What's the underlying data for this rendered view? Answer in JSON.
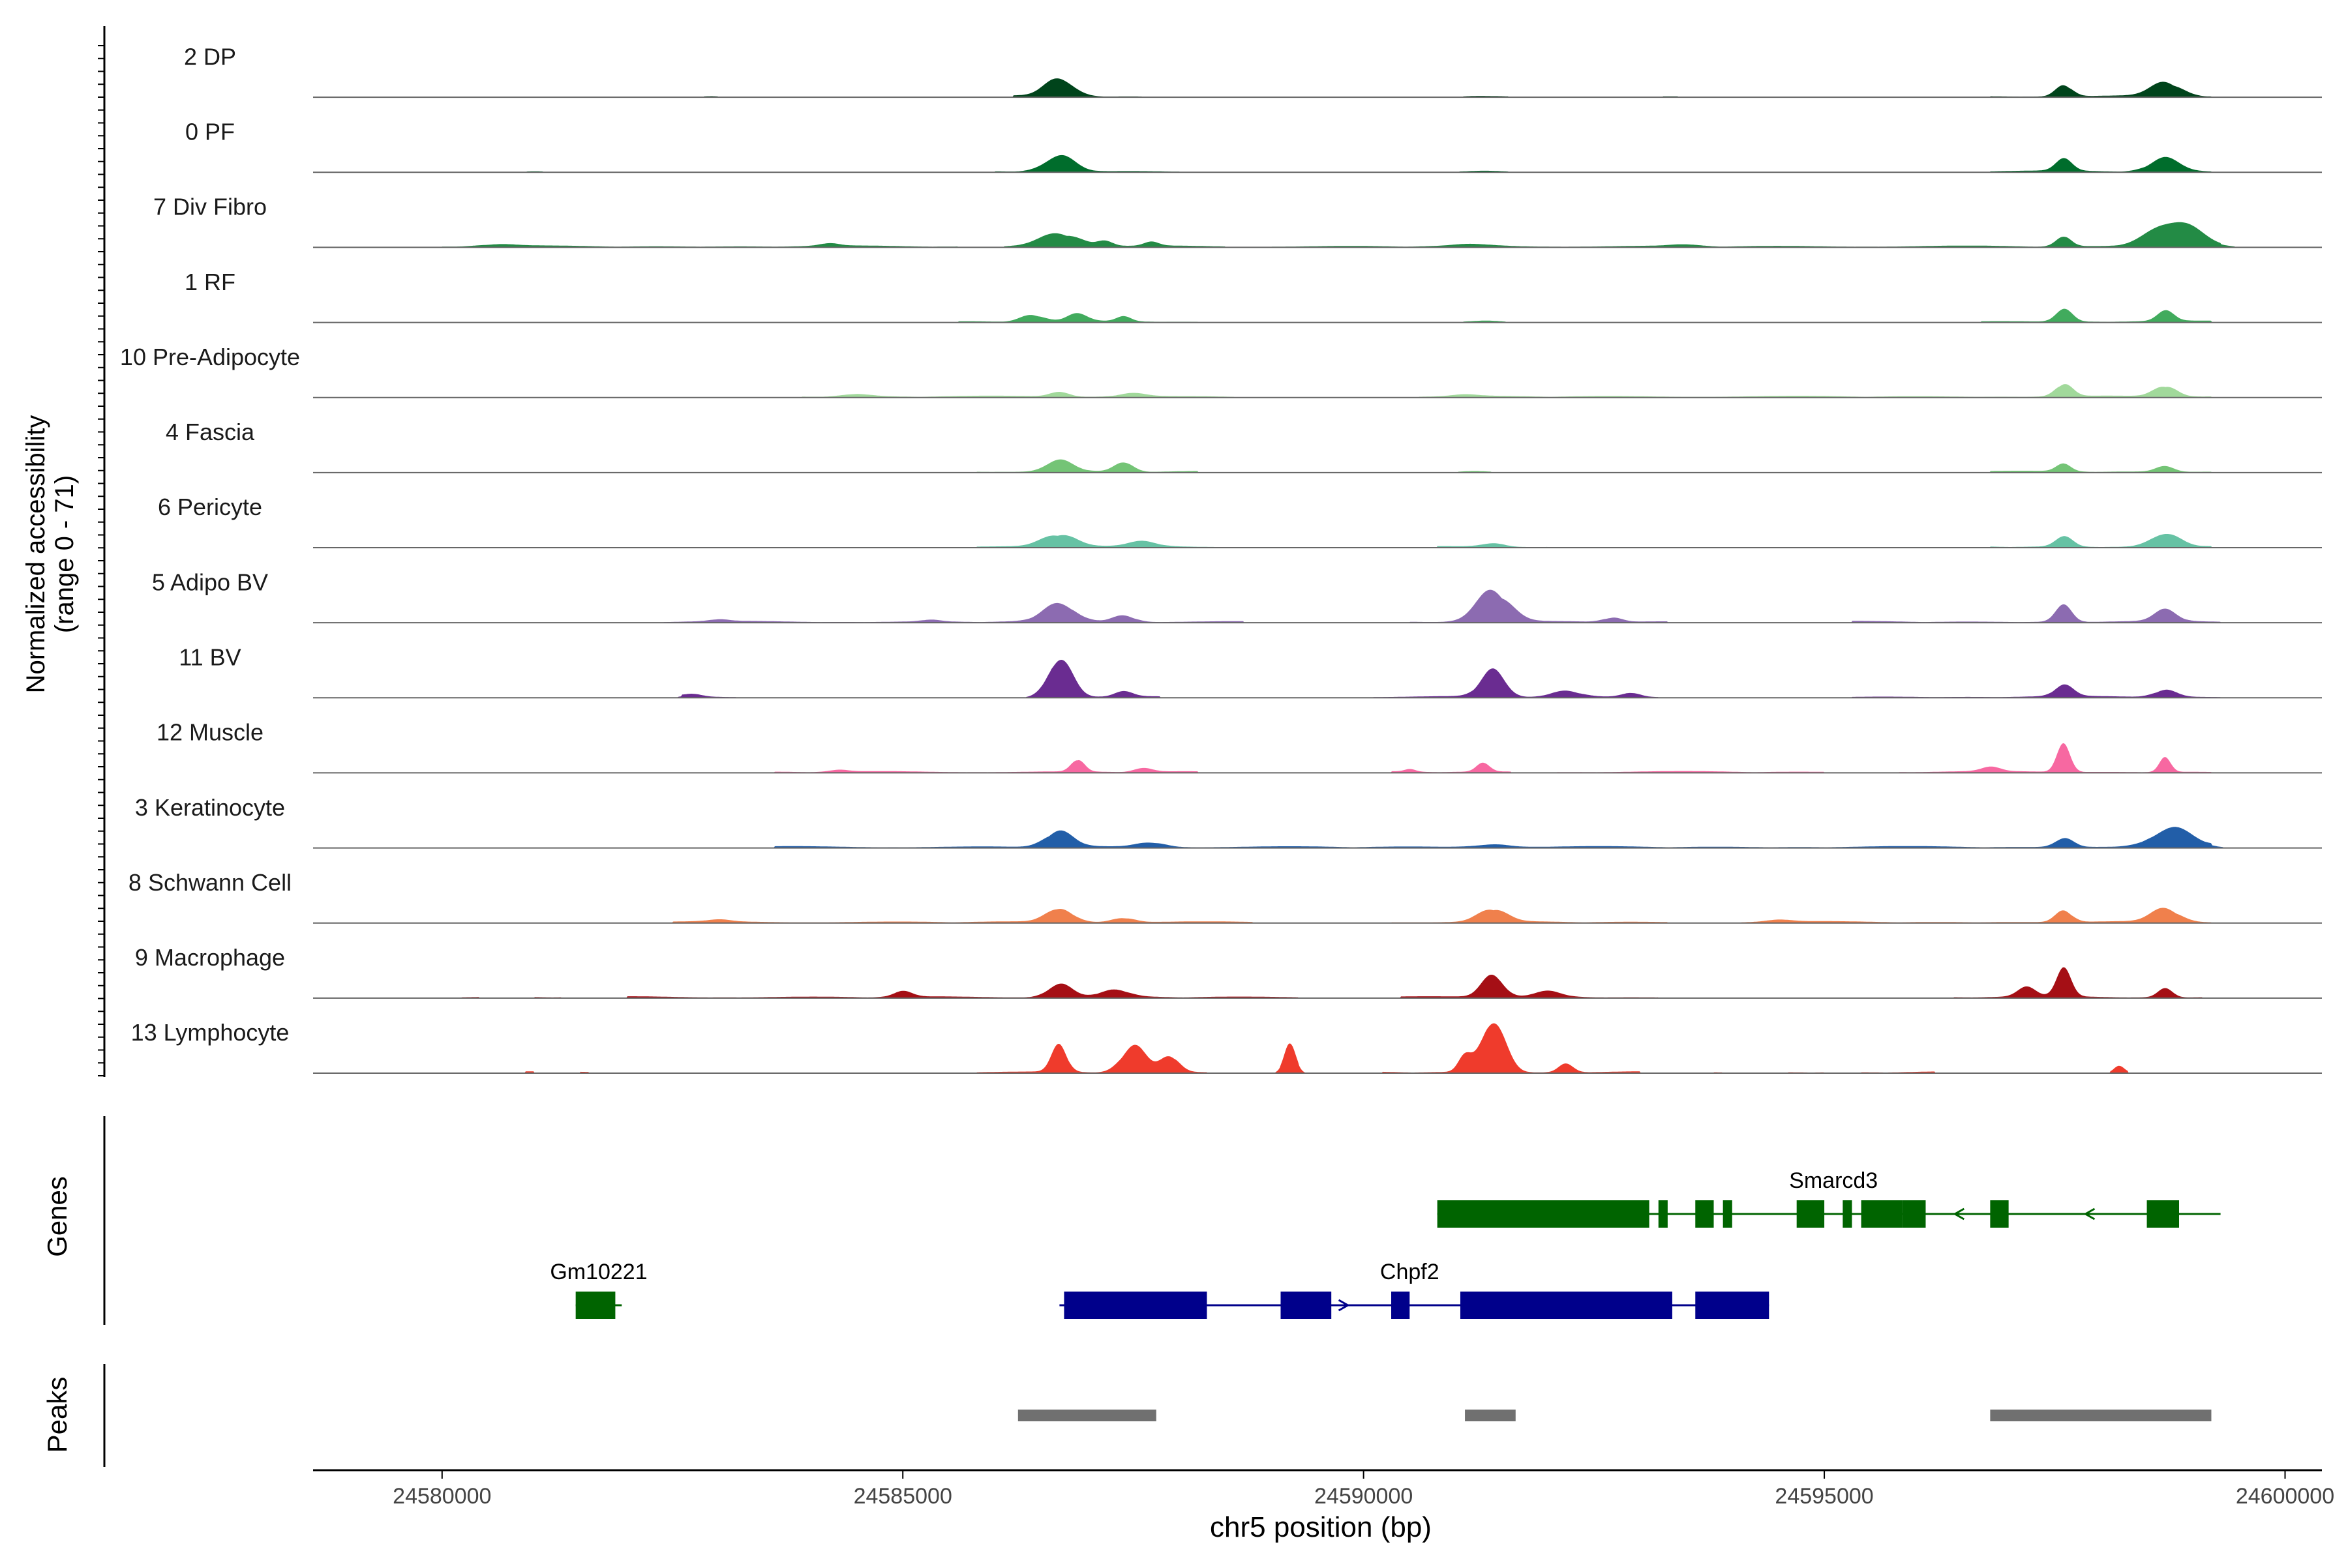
{
  "chart_data": {
    "type": "area",
    "title": "",
    "ylabel_lines": [
      "Normalized accessibility",
      "(range 0 - 71)"
    ],
    "y_range": [
      0,
      71
    ],
    "xlabel": "chr5 position (bp)",
    "xlim": [
      24578600,
      24600400
    ],
    "x_ticks": [
      24580000,
      24585000,
      24590000,
      24595000,
      24600000
    ],
    "x_tick_labels": [
      "24580000",
      "24585000",
      "24590000",
      "24595000",
      "24600000"
    ],
    "tracks": [
      {
        "name": "2 DP",
        "color": "#00441b",
        "peaks": [
          [
            24586700,
            20,
            150
          ],
          [
            24597600,
            13,
            90
          ],
          [
            24598700,
            15,
            160
          ],
          [
            24591300,
            1.5,
            250
          ],
          [
            24582900,
            1.2,
            120
          ],
          [
            24593300,
            1,
            200
          ]
        ],
        "spans": [
          [
            24586200,
            24587600
          ],
          [
            24596800,
            24599200
          ]
        ]
      },
      {
        "name": "0 PF",
        "color": "#006d2c",
        "peaks": [
          [
            24586700,
            18,
            160
          ],
          [
            24597600,
            12,
            90
          ],
          [
            24598700,
            14,
            160
          ],
          [
            24591300,
            1.5,
            300
          ],
          [
            24595000,
            1,
            400
          ],
          [
            24581000,
            1,
            200
          ]
        ],
        "spans": [
          [
            24586000,
            24588000
          ],
          [
            24596800,
            24599200
          ]
        ]
      },
      {
        "name": "7 Div Fibro",
        "color": "#238b45",
        "peaks": [
          [
            24586700,
            14,
            220
          ],
          [
            24587200,
            6,
            80
          ],
          [
            24587700,
            4,
            80
          ],
          [
            24597600,
            12,
            80
          ],
          [
            24598800,
            30,
            250
          ],
          [
            24584200,
            3,
            100
          ],
          [
            24591200,
            2,
            200
          ],
          [
            24580600,
            2,
            200
          ],
          [
            24593500,
            2,
            150
          ]
        ],
        "spans": [
          [
            24580000,
            24585600
          ],
          [
            24586100,
            24588500
          ],
          [
            24589000,
            24599300
          ]
        ]
      },
      {
        "name": "1 RF",
        "color": "#41ab5d",
        "peaks": [
          [
            24586400,
            7,
            120
          ],
          [
            24586900,
            9,
            100
          ],
          [
            24587400,
            5,
            80
          ],
          [
            24597600,
            14,
            90
          ],
          [
            24598700,
            11,
            90
          ],
          [
            24591300,
            2,
            200
          ]
        ],
        "spans": [
          [
            24585600,
            24588200
          ],
          [
            24596700,
            24599200
          ]
        ]
      },
      {
        "name": "10 Pre-Adipocyte",
        "color": "#a1d99b",
        "peaks": [
          [
            24586700,
            6,
            100
          ],
          [
            24597600,
            14,
            90
          ],
          [
            24598700,
            12,
            120
          ],
          [
            24584500,
            3,
            150
          ],
          [
            24587500,
            4,
            150
          ],
          [
            24591100,
            2,
            150
          ]
        ],
        "spans": [
          [
            24583900,
            24588600
          ],
          [
            24590600,
            24599200
          ]
        ]
      },
      {
        "name": "4 Fascia",
        "color": "#74c476",
        "peaks": [
          [
            24586700,
            12,
            150
          ],
          [
            24587400,
            11,
            100
          ],
          [
            24597600,
            8,
            80
          ],
          [
            24598700,
            6,
            100
          ],
          [
            24591200,
            1.5,
            200
          ]
        ],
        "spans": [
          [
            24585800,
            24588200
          ],
          [
            24596800,
            24599200
          ]
        ]
      },
      {
        "name": "6 Pericyte",
        "color": "#66c2a4",
        "peaks": [
          [
            24586700,
            14,
            180
          ],
          [
            24587600,
            5,
            150
          ],
          [
            24591400,
            4,
            120
          ],
          [
            24597600,
            13,
            90
          ],
          [
            24598700,
            16,
            150
          ]
        ],
        "spans": [
          [
            24585800,
            24588400
          ],
          [
            24590800,
            24592000
          ],
          [
            24596800,
            24599200
          ]
        ]
      },
      {
        "name": "5 Adipo BV",
        "color": "#8c6bb1",
        "peaks": [
          [
            24586700,
            20,
            170
          ],
          [
            24587400,
            7,
            120
          ],
          [
            24591400,
            34,
            180
          ],
          [
            24592700,
            5,
            100
          ],
          [
            24597600,
            18,
            90
          ],
          [
            24598700,
            12,
            120
          ],
          [
            24583000,
            2,
            100
          ],
          [
            24585300,
            2,
            100
          ]
        ],
        "spans": [
          [
            24582400,
            24588700
          ],
          [
            24590500,
            24593300
          ],
          [
            24595300,
            24599300
          ]
        ]
      },
      {
        "name": "11 BV",
        "color": "#6a2c91",
        "peaks": [
          [
            24586700,
            44,
            130
          ],
          [
            24587400,
            6,
            100
          ],
          [
            24591400,
            28,
            130
          ],
          [
            24592200,
            6,
            150
          ],
          [
            24592900,
            5,
            100
          ],
          [
            24582700,
            3,
            100
          ],
          [
            24597600,
            12,
            100
          ],
          [
            24598700,
            8,
            120
          ]
        ],
        "spans": [
          [
            24582600,
            24583200
          ],
          [
            24586600,
            24587800
          ],
          [
            24590100,
            24593200
          ],
          [
            24595300,
            24599300
          ]
        ]
      },
      {
        "name": "12 Muscle",
        "color": "#f768a1",
        "peaks": [
          [
            24586900,
            14,
            70
          ],
          [
            24591300,
            10,
            70
          ],
          [
            24590500,
            3,
            60
          ],
          [
            24597600,
            34,
            70
          ],
          [
            24598700,
            18,
            60
          ],
          [
            24587600,
            4,
            100
          ],
          [
            24584300,
            2,
            100
          ],
          [
            24596800,
            5,
            100
          ]
        ],
        "spans": [
          [
            24583600,
            24588200
          ],
          [
            24590300,
            24591600
          ],
          [
            24592100,
            24595000
          ],
          [
            24595800,
            24599200
          ]
        ]
      },
      {
        "name": "3 Keratinocyte",
        "color": "#225ea8",
        "peaks": [
          [
            24586700,
            18,
            150
          ],
          [
            24587700,
            5,
            150
          ],
          [
            24591400,
            3,
            200
          ],
          [
            24597600,
            10,
            100
          ],
          [
            24598700,
            14,
            200
          ],
          [
            24598900,
            8,
            200
          ]
        ],
        "spans": [
          [
            24583600,
            24599200
          ]
        ]
      },
      {
        "name": "8 Schwann Cell",
        "color": "#f0804c",
        "peaks": [
          [
            24586700,
            16,
            140
          ],
          [
            24587400,
            5,
            120
          ],
          [
            24591400,
            14,
            150
          ],
          [
            24597600,
            13,
            90
          ],
          [
            24598700,
            14,
            150
          ],
          [
            24583000,
            2,
            120
          ],
          [
            24594500,
            2,
            150
          ]
        ],
        "spans": [
          [
            24582500,
            24588800
          ],
          [
            24590300,
            24593300
          ],
          [
            24594100,
            24599200
          ]
        ]
      },
      {
        "name": "9 Macrophage",
        "color": "#a50f15",
        "peaks": [
          [
            24586700,
            14,
            130
          ],
          [
            24587300,
            8,
            150
          ],
          [
            24591400,
            24,
            120
          ],
          [
            24592000,
            6,
            150
          ],
          [
            24597600,
            30,
            80
          ],
          [
            24597200,
            10,
            100
          ],
          [
            24598700,
            10,
            80
          ],
          [
            24585000,
            6,
            100
          ]
        ],
        "spans": [
          [
            24580200,
            24580400
          ],
          [
            24581000,
            24581300
          ],
          [
            24582000,
            24589300
          ],
          [
            24590400,
            24593200
          ],
          [
            24596400,
            24599100
          ]
        ]
      },
      {
        "name": "13 Lymphocyte",
        "color": "#ef3b2c",
        "peaks": [
          [
            24586700,
            30,
            80
          ],
          [
            24587500,
            28,
            130
          ],
          [
            24587900,
            18,
            100
          ],
          [
            24589200,
            36,
            60
          ],
          [
            24591400,
            60,
            130
          ],
          [
            24591100,
            16,
            70
          ],
          [
            24592200,
            10,
            80
          ],
          [
            24598200,
            8,
            50
          ]
        ],
        "spans": [
          [
            24580900,
            24581000
          ],
          [
            24581500,
            24581600
          ],
          [
            24585800,
            24588300
          ],
          [
            24589100,
            24589300
          ],
          [
            24590200,
            24593000
          ],
          [
            24593800,
            24593900
          ],
          [
            24594600,
            24595000
          ],
          [
            24595400,
            24596200
          ],
          [
            24598100,
            24598300
          ]
        ]
      }
    ],
    "genes": [
      {
        "name": "Smarcd3",
        "color": "#006400",
        "strand": "-",
        "row": 1,
        "start": 24590800,
        "end": 24599300,
        "exons": [
          [
            24590800,
            24593100
          ],
          [
            24593200,
            24593300
          ],
          [
            24593600,
            24593800
          ],
          [
            24593900,
            24594000
          ],
          [
            24594700,
            24595000
          ],
          [
            24595200,
            24595300
          ],
          [
            24595400,
            24595850
          ],
          [
            24595850,
            24596100
          ],
          [
            24596800,
            24597000
          ],
          [
            24598500,
            24598850
          ]
        ]
      },
      {
        "name": "Gm10221",
        "color": "#006400",
        "strand": "-",
        "row": 2,
        "start": 24581450,
        "end": 24581950,
        "exons": [
          [
            24581450,
            24581880
          ]
        ]
      },
      {
        "name": "Chpf2",
        "color": "#00008b",
        "strand": "+",
        "row": 2,
        "start": 24586700,
        "end": 24594400,
        "exons": [
          [
            24586750,
            24588300
          ],
          [
            24589100,
            24589650
          ],
          [
            24590300,
            24590500
          ],
          [
            24591050,
            24593350
          ],
          [
            24593600,
            24594400
          ]
        ]
      }
    ],
    "genes_label": "Genes",
    "peaks_label": "Peaks",
    "peak_regions": [
      [
        24586250,
        24587750
      ],
      [
        24591100,
        24591650
      ],
      [
        24596800,
        24599200
      ]
    ],
    "peak_color": "#707070",
    "grid": false,
    "legend": "none"
  }
}
